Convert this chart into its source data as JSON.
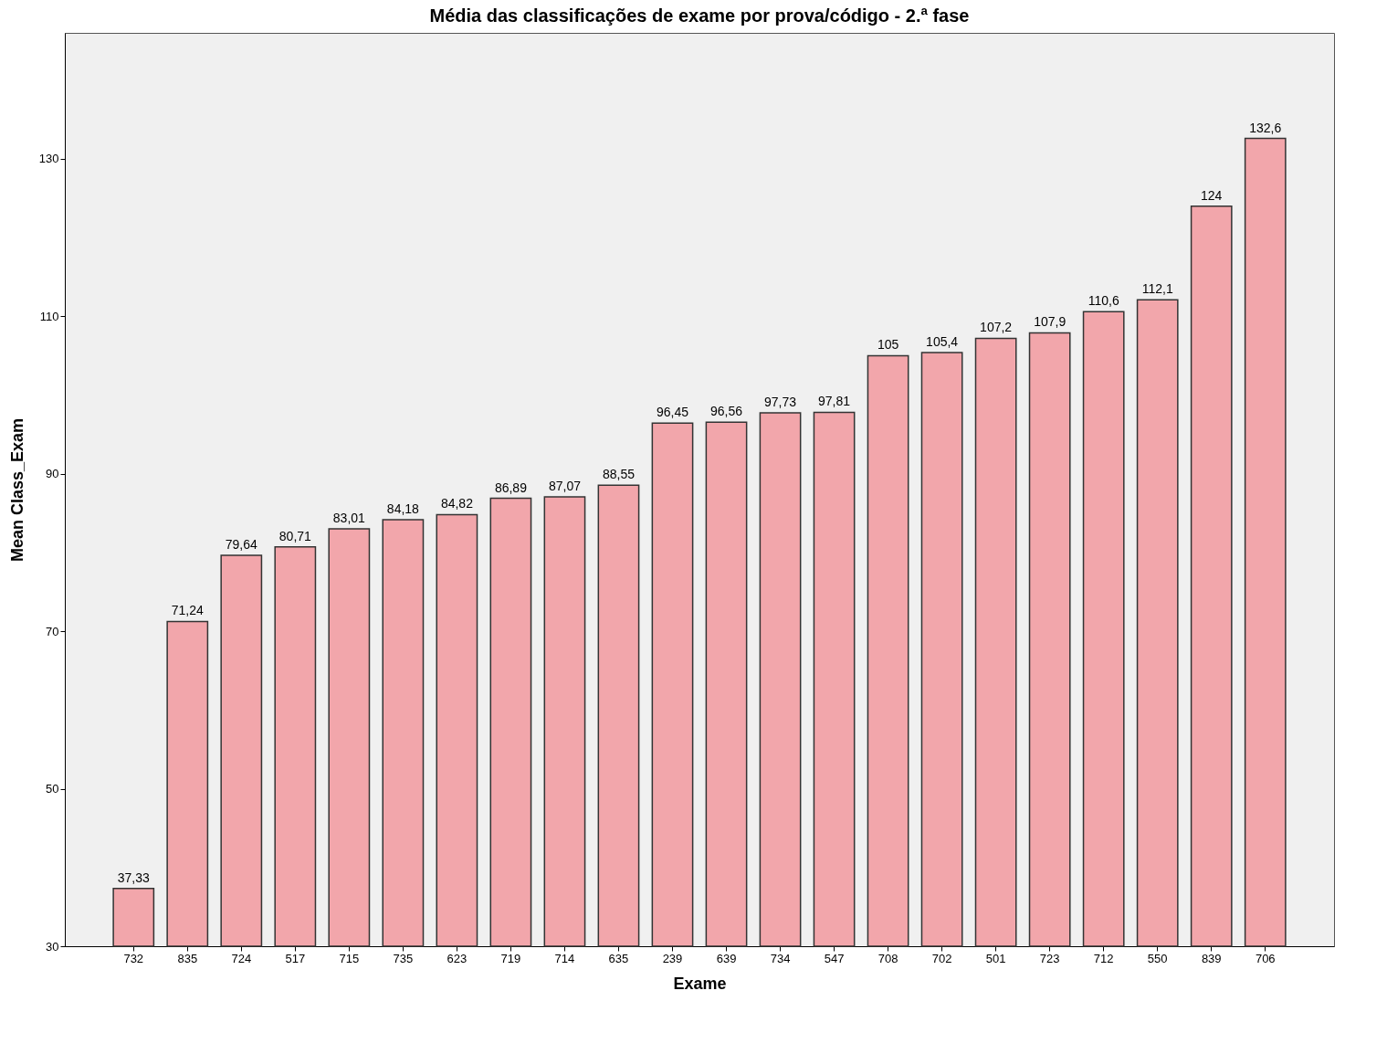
{
  "chart_data": {
    "type": "bar",
    "title": "Média das classificações de exame por prova/código - 2.ª fase",
    "xlabel": "Exame",
    "ylabel": "Mean Class_Exam",
    "categories": [
      "732",
      "835",
      "724",
      "517",
      "715",
      "735",
      "623",
      "719",
      "714",
      "635",
      "239",
      "639",
      "734",
      "547",
      "708",
      "702",
      "501",
      "723",
      "712",
      "550",
      "839",
      "706"
    ],
    "values": [
      37.33,
      71.24,
      79.64,
      80.71,
      83.01,
      84.18,
      84.82,
      86.89,
      87.07,
      88.55,
      96.45,
      96.56,
      97.73,
      97.81,
      105,
      105.4,
      107.2,
      107.9,
      110.6,
      112.1,
      124,
      132.6
    ],
    "value_labels": [
      "37,33",
      "71,24",
      "79,64",
      "80,71",
      "83,01",
      "84,18",
      "84,82",
      "86,89",
      "87,07",
      "88,55",
      "96,45",
      "96,56",
      "97,73",
      "97,81",
      "105",
      "105,4",
      "107,2",
      "107,9",
      "110,6",
      "112,1",
      "124",
      "132,6"
    ],
    "color": "#f2a6ab",
    "ylim": [
      30,
      146
    ],
    "yticks": [
      30,
      50,
      70,
      90,
      110,
      130
    ],
    "grid": false
  }
}
